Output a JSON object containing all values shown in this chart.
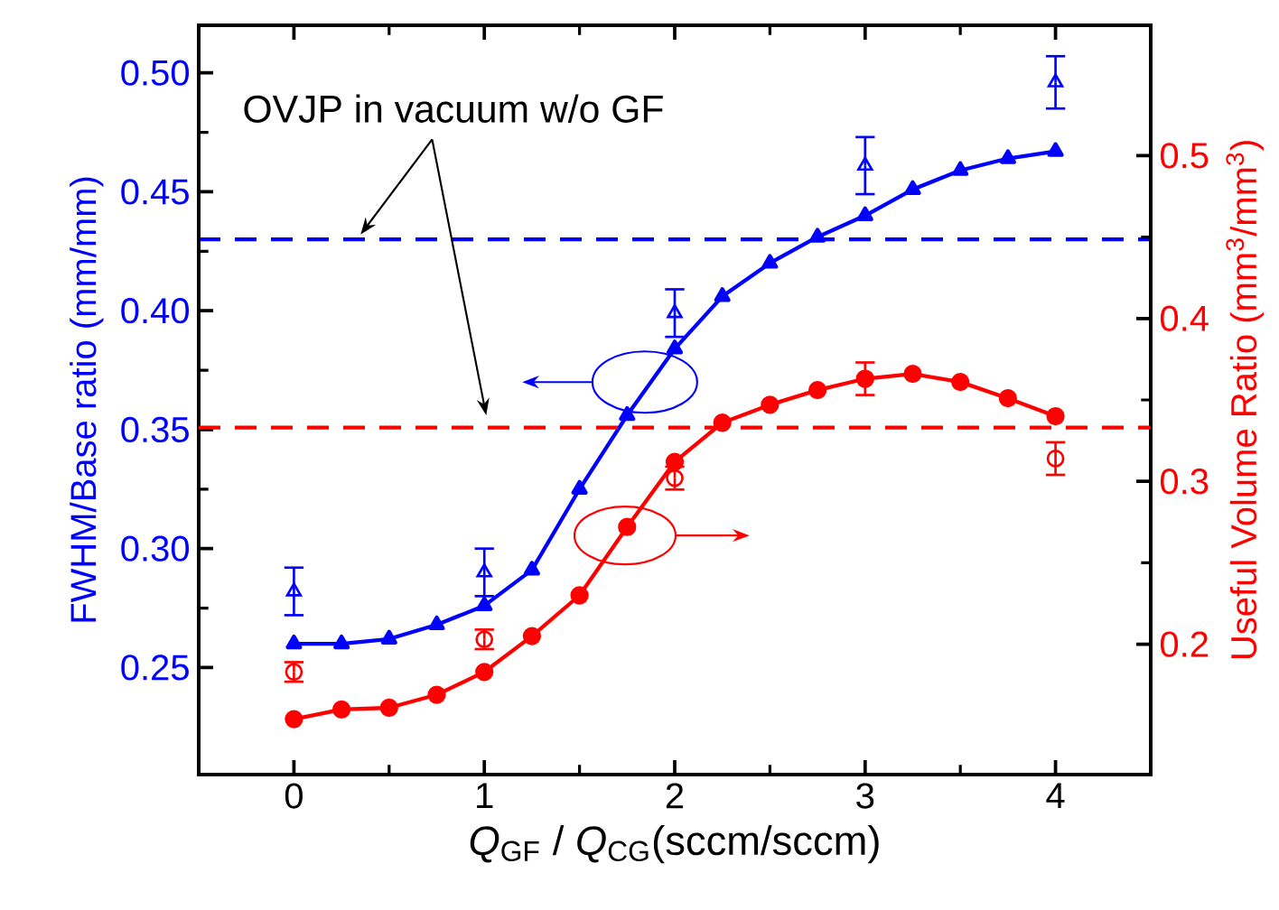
{
  "chart_data": {
    "type": "line",
    "xlabel": "*Q*$_{GF}$ / *Q*$_{CG}$(sccm/sccm)",
    "ylabel": "FWHM/Base ratio (mm/mm)",
    "y2label": "Useful Volume Ratio (mm$^{3}$/mm$^{3}$)",
    "annotations": [
      "OVJP in vacuum w/o GF"
    ],
    "xlim": [
      -0.5,
      4.5
    ],
    "xticks": [
      0,
      1,
      2,
      3,
      4
    ],
    "ylim": [
      0.205,
      0.52
    ],
    "yticks": [
      {
        "value": 0.25,
        "label": "0.25"
      },
      {
        "value": 0.3,
        "label": "0.30"
      },
      {
        "value": 0.35,
        "label": "0.35"
      },
      {
        "value": 0.4,
        "label": "0.40"
      },
      {
        "value": 0.45,
        "label": "0.45"
      },
      {
        "value": 0.5,
        "label": "0.50"
      }
    ],
    "y2lim": [
      0.12,
      0.58
    ],
    "y2ticks": [
      0.2,
      0.3,
      0.4,
      0.5
    ],
    "series": [
      {
        "color": "#0000ff",
        "marker": "triangle",
        "line_style": "solid",
        "x": [
          0,
          0.25,
          0.5,
          0.75,
          1,
          1.25,
          1.5,
          1.75,
          2,
          2.25,
          2.5,
          2.75,
          3,
          3.25,
          3.5,
          3.75,
          4
        ],
        "values": [
          0.26,
          0.26,
          0.262,
          0.268,
          0.276,
          0.291,
          0.325,
          0.356,
          0.384,
          0.406,
          0.42,
          0.431,
          0.44,
          0.451,
          0.459,
          0.464,
          0.467
        ]
      },
      {
        "type": "scatter",
        "color": "#0000ff",
        "marker": "triangle",
        "x": [
          0,
          1,
          2,
          3,
          4
        ],
        "values": [
          0.282,
          0.29,
          0.399,
          0.461,
          0.496
        ],
        "errors": [
          0.01,
          0.01,
          0.01,
          0.012,
          0.011
        ]
      },
      {
        "axis": "y2",
        "color": "#ff0000",
        "marker": "circle",
        "line_style": "solid",
        "x": [
          0,
          0.25,
          0.5,
          0.75,
          1,
          1.25,
          1.5,
          1.75,
          2,
          2.25,
          2.5,
          2.75,
          3,
          3.25,
          3.5,
          3.75,
          4
        ],
        "values": [
          0.154,
          0.16,
          0.161,
          0.169,
          0.183,
          0.205,
          0.23,
          0.272,
          0.312,
          0.336,
          0.347,
          0.356,
          0.363,
          0.366,
          0.361,
          0.351,
          0.34
        ]
      },
      {
        "type": "scatter",
        "axis": "y2",
        "color": "#ff0000",
        "marker": "circle",
        "x": [
          0,
          1,
          2,
          3,
          4
        ],
        "values": [
          0.183,
          0.203,
          0.302,
          0.363,
          0.314
        ],
        "errors": [
          0.006,
          0.006,
          0.007,
          0.01,
          0.01
        ]
      }
    ],
    "ref_lines": [
      {
        "axis": "y",
        "value": 0.43,
        "color": "#0000ff",
        "line_style": "dashed"
      },
      {
        "axis": "y2",
        "value": 0.333,
        "color": "#ff0000",
        "line_style": "dashed"
      }
    ]
  }
}
